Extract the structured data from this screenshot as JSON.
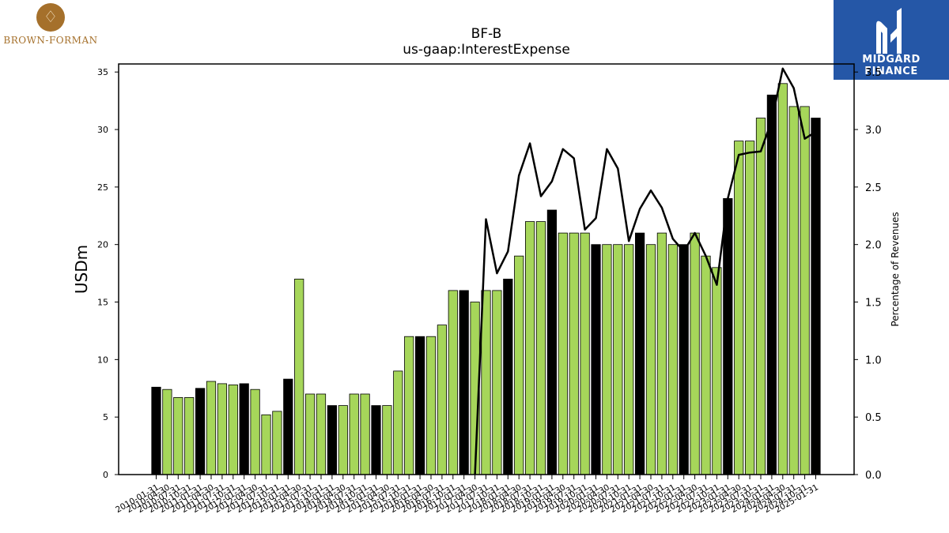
{
  "brand_left": {
    "name": "BROWN-FORMAN"
  },
  "brand_right": {
    "name": "MIDGARD FINANCE"
  },
  "chart_data": {
    "type": "bar",
    "title": "BF-B",
    "subtitle": "us-gaap:InterestExpense",
    "ylabel": "USDm",
    "y2label": "Percentage of Revenues",
    "ylim": [
      0,
      35.7
    ],
    "y2lim": [
      0,
      3.57
    ],
    "yticks": [
      0,
      5,
      10,
      15,
      20,
      25,
      30,
      35
    ],
    "y2ticks": [
      "0.0",
      "0.5",
      "1.0",
      "1.5",
      "2.0",
      "2.5",
      "3.0",
      "3.5"
    ],
    "colors": {
      "quarter_bar": "#a6d65a",
      "annual_bar": "#000000",
      "line": "#000000"
    },
    "categories": [
      "2010-01-31",
      "2010-04-30",
      "2010-07-31",
      "2010-10-31",
      "2011-01-31",
      "2011-04-30",
      "2011-07-31",
      "2011-10-31",
      "2012-01-31",
      "2012-04-30",
      "2012-07-31",
      "2012-10-31",
      "2013-01-31",
      "2013-04-30",
      "2013-07-31",
      "2013-10-31",
      "2014-01-31",
      "2014-04-30",
      "2014-07-31",
      "2014-10-31",
      "2015-01-31",
      "2015-04-30",
      "2015-07-31",
      "2015-10-31",
      "2016-01-31",
      "2016-04-30",
      "2016-07-31",
      "2016-10-31",
      "2017-01-31",
      "2017-04-30",
      "2017-07-31",
      "2017-10-31",
      "2018-01-31",
      "2018-04-30",
      "2018-07-31",
      "2018-10-31",
      "2019-01-31",
      "2019-04-30",
      "2019-07-31",
      "2019-10-31",
      "2020-01-31",
      "2020-04-30",
      "2020-07-31",
      "2020-10-31",
      "2021-01-31",
      "2021-04-30",
      "2021-07-31",
      "2021-10-31",
      "2022-01-31",
      "2022-04-30",
      "2022-07-31",
      "2022-10-31",
      "2023-01-31",
      "2023-04-30",
      "2023-07-31",
      "2023-10-31",
      "2024-01-31",
      "2024-04-30",
      "2024-07-31",
      "2024-10-31",
      "2025-01-31"
    ],
    "values": [
      7.6,
      7.4,
      6.7,
      6.7,
      7.5,
      8.1,
      7.9,
      7.8,
      7.9,
      7.4,
      5.2,
      5.5,
      8.3,
      17,
      7,
      7,
      6,
      6,
      7,
      7,
      6,
      6,
      9,
      12,
      12,
      12,
      13,
      16,
      16,
      15,
      16,
      16,
      17,
      19,
      22,
      22,
      23,
      21,
      21,
      21,
      20,
      20,
      20,
      20,
      21,
      20,
      21,
      20,
      20,
      21,
      19,
      18,
      24,
      29,
      29,
      31,
      33,
      34,
      32,
      32,
      31
    ],
    "annual": [
      true,
      false,
      false,
      false,
      true,
      false,
      false,
      false,
      true,
      false,
      false,
      false,
      true,
      false,
      false,
      false,
      true,
      false,
      false,
      false,
      true,
      false,
      false,
      false,
      true,
      false,
      false,
      false,
      true,
      false,
      false,
      false,
      true,
      false,
      false,
      false,
      true,
      false,
      false,
      false,
      true,
      false,
      false,
      false,
      true,
      false,
      false,
      false,
      true,
      false,
      false,
      false,
      true,
      false,
      false,
      false,
      true,
      false,
      false,
      false,
      true
    ],
    "line_start_index": 29,
    "line_values": [
      0,
      2.22,
      1.75,
      1.94,
      2.6,
      2.88,
      2.42,
      2.55,
      2.83,
      2.75,
      2.13,
      2.23,
      2.83,
      2.66,
      2.03,
      2.31,
      2.47,
      2.32,
      2.05,
      1.94,
      2.1,
      1.9,
      1.65,
      2.4,
      2.78,
      2.8,
      2.81,
      3.08,
      3.53,
      3.36,
      2.92,
      2.98
    ]
  }
}
